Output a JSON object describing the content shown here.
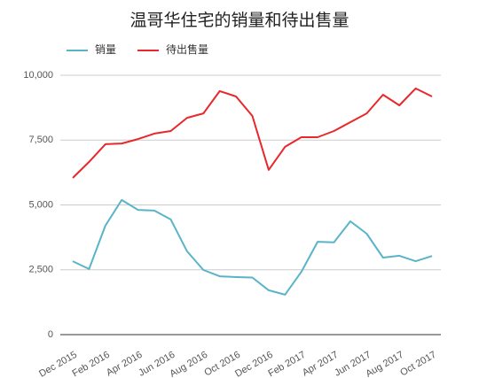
{
  "chart_data": {
    "type": "line",
    "title": "温哥华住宅的销量和待出售量",
    "categories": [
      "Dec 2015",
      null,
      "Feb 2016",
      null,
      "Apr 2016",
      null,
      "Jun 2016",
      null,
      "Aug 2016",
      null,
      "Oct 2016",
      null,
      "Dec 2016",
      null,
      "Feb 2017",
      null,
      "Apr 2017",
      null,
      "Jun 2017",
      null,
      "Aug 2017",
      null,
      "Oct 2017"
    ],
    "series": [
      {
        "name": "销量",
        "color": "#5ab4c8",
        "values": [
          2830,
          2530,
          4200,
          5190,
          4810,
          4780,
          4440,
          3210,
          2490,
          2250,
          2220,
          2200,
          1710,
          1540,
          2420,
          3580,
          3560,
          4370,
          3890,
          2970,
          3040,
          2830,
          3030
        ]
      },
      {
        "name": "待出售量",
        "color": "#e8282b",
        "values": [
          6040,
          6660,
          7340,
          7370,
          7540,
          7750,
          7850,
          8360,
          8530,
          9390,
          9180,
          8430,
          6350,
          7240,
          7610,
          7610,
          7850,
          8190,
          8530,
          9250,
          8840,
          9490,
          9180
        ]
      }
    ],
    "ylim": [
      0,
      10000
    ],
    "yticks": [
      0,
      {
        "value": 2500,
        "label": "2,500"
      },
      {
        "value": 5000,
        "label": "5,000"
      },
      {
        "value": 7500,
        "label": "7,500"
      },
      {
        "value": 10000,
        "label": "10,000"
      }
    ],
    "grid": true,
    "legend": "top-left"
  }
}
